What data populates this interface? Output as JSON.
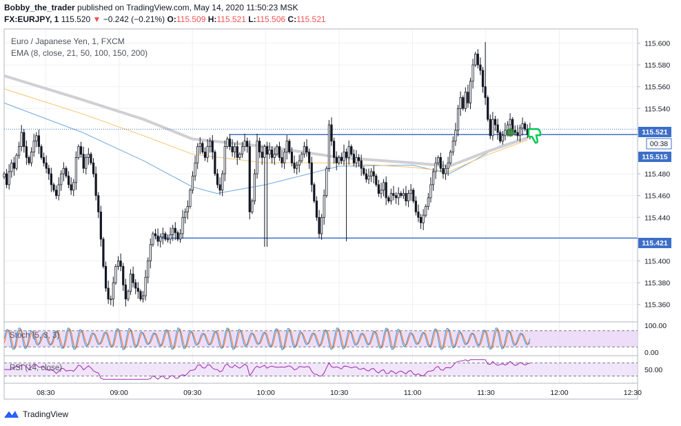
{
  "header": {
    "author": "Bobby_the_trader",
    "published": "published on TradingView.com, May 14, 2020 11:50:23 MSK",
    "symbol": "FX:EURJPY, 1",
    "last": "115.520",
    "change_arrow": "▼",
    "change": "−0.242 (−0.21%)",
    "o_label": "O:",
    "o_value": "115.509",
    "h_label": "H:",
    "h_value": "115.521",
    "l_label": "L:",
    "l_value": "115.506",
    "c_label": "C:",
    "c_value": "115.521"
  },
  "legend": {
    "instrument": "Euro / Japanese Yen, 1, FXCM",
    "ema": "EMA (8, close, 21, 50, 100, 150, 200)",
    "stoch": "Stoch (5, 3, 3)",
    "rsi": "RSI (14, close)"
  },
  "price_badges": {
    "last": "115.521",
    "countdown": "00:38",
    "ema_value": "115.515",
    "support": "115.421"
  },
  "colors": {
    "up": "#ffffff",
    "down": "#131722",
    "wick": "#131722",
    "level_line": "#3d6fc7",
    "ema_fast": "#6fa8dc",
    "ema_mid": "#f6c26b",
    "ema_slow": "#cfcfd4",
    "stoch_k": "#2196f3",
    "stoch_d": "#ff6d00",
    "osc_band": "#e8d4f7",
    "rsi_line": "#9c27b0",
    "marker_green": "#2e7d32",
    "thumb": "#00c853"
  },
  "footer": {
    "brand": "TradingView",
    "logo_icon": "tradingview-logo-icon"
  },
  "chart_data": {
    "type": "candlestick",
    "interval": "1 minute",
    "y_axis": {
      "ylim": [
        115.344,
        115.613
      ],
      "ticks": [
        "115.600",
        "115.580",
        "115.560",
        "115.540",
        "115.480",
        "115.460",
        "115.440",
        "115.400",
        "115.380",
        "115.360"
      ]
    },
    "x_axis": {
      "xlim": [
        "08:13",
        "12:32"
      ],
      "ticks": [
        {
          "label": "08:30",
          "t": "08:30"
        },
        {
          "label": "09:00",
          "t": "09:00"
        },
        {
          "label": "09:30",
          "t": "09:30"
        },
        {
          "label": "10:00",
          "t": "10:00"
        },
        {
          "label": "10:30",
          "t": "10:30"
        },
        {
          "label": "11:00",
          "t": "11:00"
        },
        {
          "label": "11:30",
          "t": "11:30"
        },
        {
          "label": "12:00",
          "t": "12:00"
        },
        {
          "label": "12:30",
          "t": "12:30"
        }
      ]
    },
    "levels": [
      {
        "name": "resistance",
        "price": 115.516,
        "from": "09:45",
        "to": "12:32"
      },
      {
        "name": "support",
        "price": 115.421,
        "from": "09:15",
        "to": "12:32"
      }
    ],
    "last_price_line": 115.521,
    "candle_series": {
      "start": "08:13",
      "closes": [
        115.48,
        115.47,
        115.482,
        115.49,
        115.485,
        115.497,
        115.505,
        115.518,
        115.505,
        115.495,
        115.49,
        115.5,
        115.51,
        115.515,
        115.505,
        115.495,
        115.49,
        115.485,
        115.48,
        115.47,
        115.465,
        115.46,
        115.47,
        115.48,
        115.485,
        115.478,
        115.47,
        115.465,
        115.472,
        115.495,
        115.505,
        115.498,
        115.485,
        115.495,
        115.498,
        115.49,
        115.48,
        115.46,
        115.445,
        115.42,
        115.395,
        115.375,
        115.365,
        115.365,
        115.38,
        115.395,
        115.4,
        115.395,
        115.378,
        115.365,
        115.372,
        115.388,
        115.38,
        115.375,
        115.372,
        115.365,
        115.368,
        115.385,
        115.4,
        115.415,
        115.425,
        115.423,
        115.418,
        115.422,
        115.425,
        115.42,
        115.42,
        115.424,
        115.43,
        115.426,
        115.42,
        115.425,
        115.44,
        115.445,
        115.45,
        115.465,
        115.478,
        115.49,
        115.505,
        115.508,
        115.5,
        115.495,
        115.505,
        115.51,
        115.5,
        115.48,
        115.47,
        115.465,
        115.48,
        115.505,
        115.512,
        115.505,
        115.5,
        115.505,
        115.495,
        115.498,
        115.505,
        115.51,
        115.505,
        115.445,
        115.455,
        115.48,
        115.51,
        115.5,
        115.495,
        115.505,
        115.498,
        115.502,
        115.495,
        115.498,
        115.505,
        115.495,
        115.49,
        115.5,
        115.51,
        115.5,
        115.49,
        115.485,
        115.488,
        115.492,
        115.498,
        115.505,
        115.5,
        115.49,
        115.47,
        115.455,
        115.44,
        115.425,
        115.44,
        115.46,
        115.485,
        115.525,
        115.51,
        115.495,
        115.49,
        115.495,
        115.492,
        115.5,
        115.495,
        115.505,
        115.498,
        115.49,
        115.495,
        115.492,
        115.485,
        115.48,
        115.475,
        115.478,
        115.482,
        115.478,
        115.47,
        115.462,
        115.465,
        115.472,
        115.458,
        115.455,
        115.462,
        115.46,
        115.458,
        115.462,
        115.46,
        115.462,
        115.455,
        115.462,
        115.465,
        115.455,
        115.445,
        115.44,
        115.435,
        115.442,
        115.45,
        115.458,
        115.47,
        115.482,
        115.49,
        115.495,
        115.485,
        115.48,
        115.485,
        115.49,
        115.5,
        115.51,
        115.52,
        115.54,
        115.55,
        115.54,
        115.555,
        115.545,
        115.565,
        115.58,
        115.59,
        115.58,
        115.575,
        115.56,
        115.55,
        115.53,
        115.515,
        115.53,
        115.525,
        115.518,
        115.51,
        115.515,
        115.52,
        115.525,
        115.53,
        115.52,
        115.518,
        115.515,
        115.522,
        115.526,
        115.521,
        115.516,
        115.52
      ],
      "note_lows": [
        {
          "t": "10:00",
          "low": 115.413
        },
        {
          "t": "10:33",
          "low": 115.418
        }
      ],
      "note_high": {
        "t": "11:30",
        "high": 115.601
      }
    },
    "ema_lines": [
      {
        "key": "ema_fast",
        "values_at": [
          [
            "08:13",
            115.545
          ],
          [
            "08:45",
            115.518
          ],
          [
            "09:10",
            115.492
          ],
          [
            "09:30",
            115.468
          ],
          [
            "09:40",
            115.462
          ],
          [
            "10:00",
            115.47
          ],
          [
            "10:30",
            115.487
          ],
          [
            "11:00",
            115.488
          ],
          [
            "11:15",
            115.48
          ],
          [
            "11:25",
            115.492
          ],
          [
            "11:35",
            115.505
          ],
          [
            "11:47",
            115.514
          ]
        ]
      },
      {
        "key": "ema_mid",
        "values_at": [
          [
            "08:13",
            115.558
          ],
          [
            "08:45",
            115.535
          ],
          [
            "09:10",
            115.515
          ],
          [
            "09:30",
            115.498
          ],
          [
            "10:00",
            115.49
          ],
          [
            "10:30",
            115.49
          ],
          [
            "11:00",
            115.486
          ],
          [
            "11:15",
            115.482
          ],
          [
            "11:30",
            115.497
          ],
          [
            "11:47",
            115.511
          ]
        ]
      },
      {
        "key": "ema_slow",
        "values_at": [
          [
            "08:13",
            115.57
          ],
          [
            "08:45",
            115.548
          ],
          [
            "09:10",
            115.53
          ],
          [
            "09:30",
            115.512
          ],
          [
            "10:00",
            115.505
          ],
          [
            "10:30",
            115.495
          ],
          [
            "11:00",
            115.49
          ],
          [
            "11:15",
            115.487
          ],
          [
            "11:30",
            115.5
          ],
          [
            "11:47",
            115.513
          ]
        ]
      }
    ],
    "stoch": {
      "ylim": [
        -10,
        110
      ],
      "ticks": [
        "100.00",
        "0.00"
      ],
      "band": [
        20,
        80
      ],
      "period_min": 5
    },
    "rsi": {
      "ylim": [
        10,
        90
      ],
      "ticks": [
        "50.00"
      ],
      "band": [
        30,
        70
      ]
    },
    "markers": [
      {
        "t": "11:40",
        "price": 115.518,
        "kind": "entry-dot"
      },
      {
        "t": "11:48",
        "price": 115.516,
        "kind": "thumbs-down"
      }
    ]
  }
}
